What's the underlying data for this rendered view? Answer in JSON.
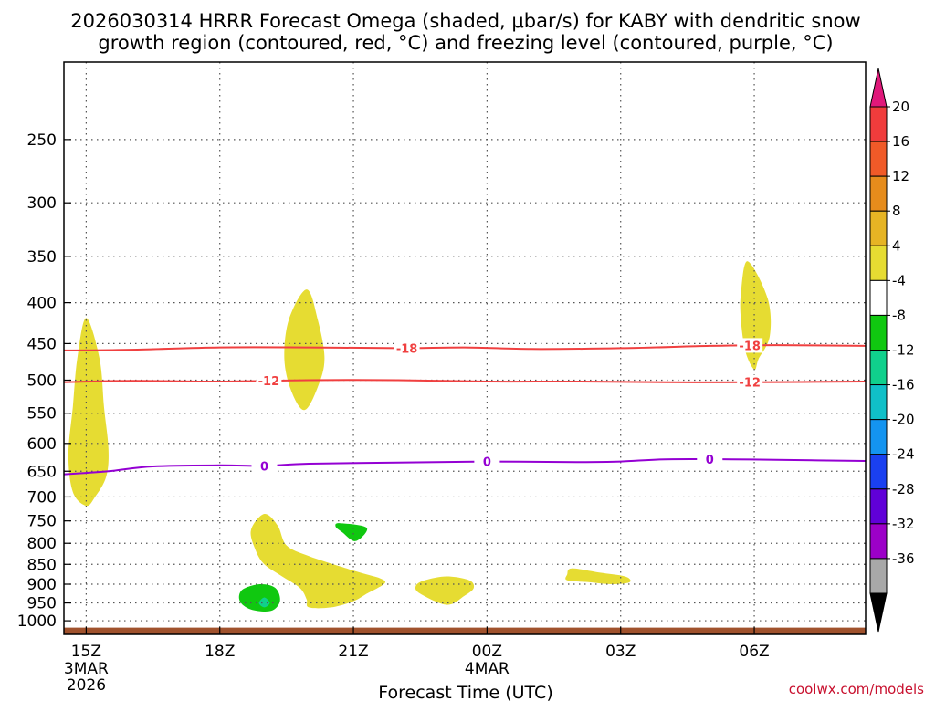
{
  "chart_data": {
    "type": "heatmap",
    "title_line1": "2026030314 HRRR Forecast Omega (shaded, μbar/s) for KABY with dendritic snow",
    "title_line2": "growth region (contoured, red, °C) and freezing level (contoured, purple, °C)",
    "xlabel": "Forecast Time (UTC)",
    "credit": "coolwx.com/models",
    "x_range": [
      14.5,
      32.5
    ],
    "x_ticks": [
      {
        "hour": 15,
        "label": "15Z",
        "sub1": "3MAR",
        "sub2": "2026"
      },
      {
        "hour": 18,
        "label": "18Z",
        "sub1": "",
        "sub2": ""
      },
      {
        "hour": 21,
        "label": "21Z",
        "sub1": "",
        "sub2": ""
      },
      {
        "hour": 24,
        "label": "00Z",
        "sub1": "4MAR",
        "sub2": ""
      },
      {
        "hour": 27,
        "label": "03Z",
        "sub1": "",
        "sub2": ""
      },
      {
        "hour": 30,
        "label": "06Z",
        "sub1": "",
        "sub2": ""
      }
    ],
    "y_ticks": [
      {
        "p": 250,
        "label": "250"
      },
      {
        "p": 300,
        "label": "300"
      },
      {
        "p": 350,
        "label": "350"
      },
      {
        "p": 400,
        "label": "400"
      },
      {
        "p": 450,
        "label": "450"
      },
      {
        "p": 500,
        "label": "500"
      },
      {
        "p": 550,
        "label": "550"
      },
      {
        "p": 600,
        "label": "600"
      },
      {
        "p": 650,
        "label": "650"
      },
      {
        "p": 700,
        "label": "700"
      },
      {
        "p": 750,
        "label": "750"
      },
      {
        "p": 800,
        "label": "800"
      },
      {
        "p": 850,
        "label": "850"
      },
      {
        "p": 900,
        "label": "900"
      },
      {
        "p": 950,
        "label": "950"
      },
      {
        "p": 1000,
        "label": "1000"
      }
    ],
    "y_range": [
      200,
      1040
    ],
    "ground_p": 1020,
    "colorbar": {
      "colors": [
        "#000000",
        "#a8a8a8",
        "#9c00c8",
        "#6000d8",
        "#1a40f0",
        "#1494f0",
        "#10c0c8",
        "#10d08c",
        "#10c810",
        "#ffffff",
        "#e6dc32",
        "#e6b424",
        "#e68c1c",
        "#f05a28",
        "#f03c3c",
        "#e0187a"
      ],
      "labels": [
        "-36",
        "-32",
        "-28",
        "-24",
        "-20",
        "-16",
        "-12",
        "-8",
        "-4",
        "4",
        "8",
        "12",
        "16",
        "20"
      ]
    },
    "contours": [
      {
        "name": "contour-minus18",
        "color": "#f04040",
        "label": "-18",
        "points": [
          [
            14.5,
            459
          ],
          [
            16,
            458
          ],
          [
            18,
            455
          ],
          [
            20,
            455
          ],
          [
            22,
            456
          ],
          [
            23.5,
            455
          ],
          [
            25,
            457
          ],
          [
            27,
            456
          ],
          [
            29,
            453
          ],
          [
            30.5,
            452
          ],
          [
            32.5,
            453
          ]
        ],
        "label_hours": [
          22.2,
          29.9
        ]
      },
      {
        "name": "contour-minus12",
        "color": "#f04040",
        "label": "-12",
        "points": [
          [
            14.5,
            503
          ],
          [
            16,
            501
          ],
          [
            18,
            502
          ],
          [
            20,
            500
          ],
          [
            22,
            500
          ],
          [
            24,
            502
          ],
          [
            26,
            502
          ],
          [
            28,
            503
          ],
          [
            30,
            503
          ],
          [
            32.5,
            502
          ]
        ],
        "label_hours": [
          19.1,
          29.9
        ]
      },
      {
        "name": "contour-freezing-0",
        "color": "#9400d3",
        "label": "0",
        "points": [
          [
            14.5,
            656
          ],
          [
            15.5,
            650
          ],
          [
            16.5,
            641
          ],
          [
            18,
            639
          ],
          [
            19,
            640
          ],
          [
            20,
            636
          ],
          [
            22,
            634
          ],
          [
            24,
            632
          ],
          [
            26,
            633
          ],
          [
            27,
            632
          ],
          [
            28,
            628
          ],
          [
            29.5,
            628
          ],
          [
            30.5,
            629
          ],
          [
            32.5,
            631
          ]
        ],
        "label_hours": [
          19,
          24,
          29
        ]
      }
    ],
    "regions": [
      {
        "name": "omega-yellow-1",
        "color": "#e6dc32",
        "points": [
          [
            15.0,
            418
          ],
          [
            15.3,
            470
          ],
          [
            15.4,
            540
          ],
          [
            15.5,
            610
          ],
          [
            15.45,
            660
          ],
          [
            15.2,
            700
          ],
          [
            15.0,
            718
          ],
          [
            14.7,
            690
          ],
          [
            14.6,
            620
          ],
          [
            14.7,
            540
          ],
          [
            14.8,
            470
          ]
        ]
      },
      {
        "name": "omega-yellow-2",
        "color": "#e6dc32",
        "points": [
          [
            19.95,
            385
          ],
          [
            20.2,
            420
          ],
          [
            20.35,
            470
          ],
          [
            20.2,
            510
          ],
          [
            19.9,
            545
          ],
          [
            19.6,
            515
          ],
          [
            19.45,
            470
          ],
          [
            19.55,
            420
          ]
        ]
      },
      {
        "name": "omega-yellow-3",
        "color": "#e6dc32",
        "points": [
          [
            29.85,
            355
          ],
          [
            30.3,
            395
          ],
          [
            30.35,
            440
          ],
          [
            30.1,
            470
          ],
          [
            30.0,
            485
          ],
          [
            29.8,
            460
          ],
          [
            29.7,
            420
          ],
          [
            29.7,
            390
          ]
        ]
      },
      {
        "name": "omega-yellow-4",
        "color": "#e6dc32",
        "points": [
          [
            19.0,
            735
          ],
          [
            19.3,
            760
          ],
          [
            19.5,
            805
          ],
          [
            20,
            830
          ],
          [
            20.7,
            855
          ],
          [
            21.2,
            872
          ],
          [
            21.6,
            885
          ],
          [
            21.7,
            898
          ],
          [
            21.3,
            925
          ],
          [
            21.0,
            945
          ],
          [
            20.5,
            962
          ],
          [
            20.0,
            962
          ],
          [
            19.95,
            940
          ],
          [
            19.8,
            910
          ],
          [
            19.4,
            880
          ],
          [
            19.0,
            850
          ],
          [
            18.8,
            815
          ],
          [
            18.7,
            770
          ]
        ]
      },
      {
        "name": "omega-yellow-5",
        "color": "#e6dc32",
        "points": [
          [
            23.1,
            880
          ],
          [
            23.6,
            890
          ],
          [
            23.7,
            910
          ],
          [
            23.5,
            930
          ],
          [
            23.1,
            955
          ],
          [
            22.5,
            925
          ],
          [
            22.4,
            905
          ],
          [
            22.6,
            890
          ]
        ]
      },
      {
        "name": "omega-yellow-6",
        "color": "#e6dc32",
        "points": [
          [
            25.9,
            860
          ],
          [
            26.5,
            870
          ],
          [
            27.1,
            880
          ],
          [
            27.2,
            895
          ],
          [
            26.8,
            900
          ],
          [
            26.3,
            895
          ],
          [
            25.8,
            890
          ],
          [
            25.8,
            875
          ]
        ]
      },
      {
        "name": "omega-green-1",
        "color": "#10c810",
        "points": [
          [
            20.7,
            755
          ],
          [
            21.3,
            765
          ],
          [
            21.05,
            795
          ],
          [
            20.75,
            775
          ],
          [
            20.6,
            762
          ]
        ]
      },
      {
        "name": "omega-green-2",
        "color": "#10c810",
        "points": [
          [
            18.9,
            900
          ],
          [
            19.25,
            910
          ],
          [
            19.35,
            945
          ],
          [
            19.15,
            972
          ],
          [
            18.7,
            968
          ],
          [
            18.45,
            945
          ],
          [
            18.5,
            915
          ]
        ]
      },
      {
        "name": "omega-teal-core",
        "color": "#10d08c",
        "points": [
          [
            19.0,
            935
          ],
          [
            19.12,
            950
          ],
          [
            19.0,
            962
          ],
          [
            18.88,
            950
          ]
        ]
      }
    ]
  }
}
